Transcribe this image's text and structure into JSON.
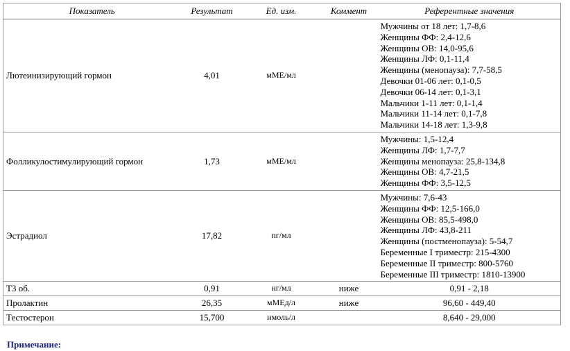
{
  "header": {
    "columns": [
      "Показатель",
      "Результат",
      "Ед. изм.",
      "Коммент",
      "Референтные значения"
    ]
  },
  "table": {
    "rows": [
      {
        "name": "Лютеинизирующий гормон",
        "result": "4,01",
        "unit": "мМЕ/мл",
        "reference": [
          "Мужчины от 18 лет: 1,7-8,6",
          "Женщины ФФ: 2,4-12,6",
          "Женщины ОВ: 14,0-95,6",
          "Женщины ЛФ: 0,1-11,4",
          "Женщины (менопауза): 7,7-58,5",
          "Девочки 01-06 лет: 0,1-0,5",
          "Девочки 06-14 лет: 0,1-3,1",
          "Мальчики 1-11 лет: 0,1-1,4",
          "Мальчики 11-14 лет: 0,1-7,8",
          "Мальчики 14-18 лет: 1,3-9,8"
        ]
      },
      {
        "name": "Фолликулостимулирующий гормон",
        "result": "1,73",
        "unit": "мМЕ/мл",
        "reference": [
          "Мужчины: 1,5-12,4",
          "Женщины ЛФ: 1,7-7,7",
          "Женщины менопауза: 25,8-134,8",
          "Женщины ОВ: 4,7-21,5",
          "Женщины ФФ: 3,5-12,5"
        ]
      },
      {
        "name": "Эстрадиол",
        "result": "17,82",
        "unit": "пг/мл",
        "reference": [
          "Мужчины: 7,6-43",
          "Женщины ФФ: 12,5-166,0",
          "Женщины ОВ: 85,5-498,0",
          "Женщины ЛФ: 43,8-211",
          "Женщины (постменопауза): 5-54,7",
          "Беременные I триместр: 215-4300",
          "Беременные II триместр: 800-5760",
          "Беременные III триместр: 1810-13900"
        ]
      },
      {
        "name": "Т3 об.",
        "result": "0,91",
        "unit": "нг/мл",
        "comment": "ниже",
        "reference": [
          "0,91 - 2,18"
        ]
      },
      {
        "name": "Пролактин",
        "result": "26,35",
        "unit": "мМЕд/л",
        "comment": "ниже",
        "reference": [
          "96,60 - 449,40"
        ]
      },
      {
        "name": "Тестостерон",
        "result": "15,700",
        "unit": "нмоль/л",
        "reference": [
          "8,640 - 29,000"
        ]
      }
    ]
  },
  "note": "Примечание:"
}
